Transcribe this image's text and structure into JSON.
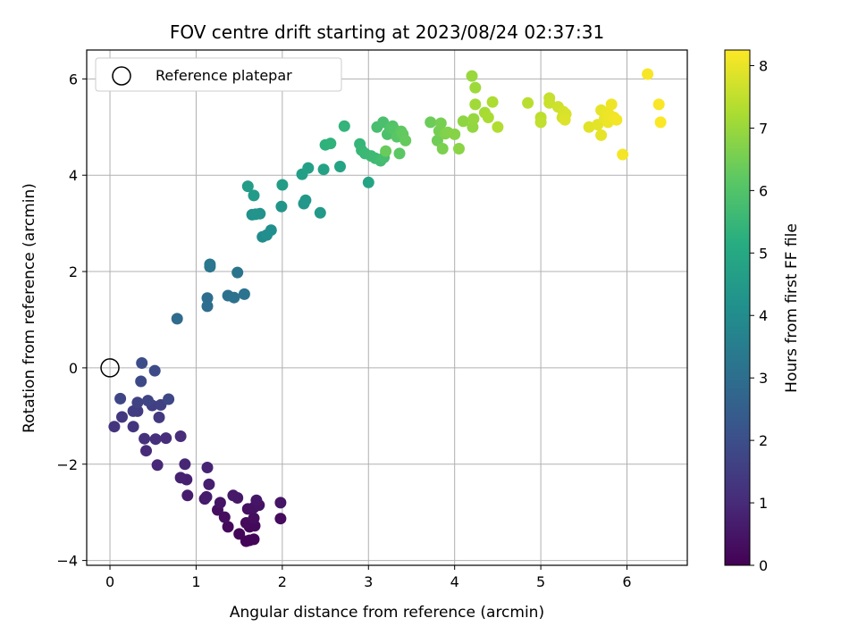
{
  "chart_data": {
    "type": "scatter",
    "title": "FOV centre drift starting at 2023/08/24 02:37:31",
    "xlabel": "Angular distance from reference (arcmin)",
    "ylabel": "Rotation from reference (arcmin)",
    "xlim": [
      -0.27,
      6.7
    ],
    "ylim": [
      -4.1,
      6.6
    ],
    "xticks": [
      0,
      1,
      2,
      3,
      4,
      5,
      6
    ],
    "yticks": [
      -4,
      -2,
      0,
      2,
      4,
      6
    ],
    "xtick_labels": [
      "0",
      "1",
      "2",
      "3",
      "4",
      "5",
      "6"
    ],
    "ytick_labels": [
      "−4",
      "−2",
      "0",
      "2",
      "4",
      "6"
    ],
    "grid": true,
    "legend": {
      "position": "top-left",
      "entries": [
        {
          "label": "Reference platepar",
          "marker": "open-circle"
        }
      ]
    },
    "reference_point": {
      "x": 0,
      "y": 0
    },
    "colorbar": {
      "label": "Hours from first FF file",
      "colormap": "viridis",
      "range": [
        0,
        8.25
      ],
      "ticks": [
        0,
        1,
        2,
        3,
        4,
        5,
        6,
        7,
        8
      ],
      "tick_labels": [
        "0",
        "1",
        "2",
        "3",
        "4",
        "5",
        "6",
        "7",
        "8"
      ]
    },
    "points": [
      [
        1.62,
        -3.58,
        0.05
      ],
      [
        1.58,
        -3.6,
        0.08
      ],
      [
        1.67,
        -3.56,
        0.1
      ],
      [
        1.5,
        -3.45,
        0.12
      ],
      [
        1.62,
        -3.3,
        0.15
      ],
      [
        1.37,
        -3.3,
        0.18
      ],
      [
        1.68,
        -3.28,
        0.2
      ],
      [
        1.58,
        -3.22,
        0.22
      ],
      [
        1.98,
        -3.13,
        0.25
      ],
      [
        1.67,
        -3.12,
        0.28
      ],
      [
        1.33,
        -3.1,
        0.3
      ],
      [
        1.25,
        -2.95,
        0.33
      ],
      [
        1.6,
        -2.93,
        0.36
      ],
      [
        1.67,
        -2.9,
        0.39
      ],
      [
        1.73,
        -2.85,
        0.42
      ],
      [
        1.28,
        -2.8,
        0.45
      ],
      [
        1.98,
        -2.8,
        0.48
      ],
      [
        1.7,
        -2.75,
        0.51
      ],
      [
        1.48,
        -2.7,
        0.54
      ],
      [
        1.43,
        -2.65,
        0.57
      ],
      [
        1.1,
        -2.72,
        0.6
      ],
      [
        1.12,
        -2.68,
        0.64
      ],
      [
        0.9,
        -2.65,
        0.68
      ],
      [
        1.15,
        -2.42,
        0.72
      ],
      [
        0.89,
        -2.32,
        0.76
      ],
      [
        0.82,
        -2.28,
        0.8
      ],
      [
        1.13,
        -2.07,
        0.85
      ],
      [
        0.87,
        -2.0,
        0.9
      ],
      [
        0.55,
        -2.02,
        0.95
      ],
      [
        0.42,
        -1.72,
        1.0
      ],
      [
        0.82,
        -1.42,
        1.05
      ],
      [
        0.65,
        -1.46,
        1.1
      ],
      [
        0.53,
        -1.48,
        1.15
      ],
      [
        0.4,
        -1.47,
        1.2
      ],
      [
        0.05,
        -1.22,
        1.25
      ],
      [
        0.27,
        -1.22,
        1.3
      ],
      [
        0.14,
        -1.02,
        1.35
      ],
      [
        0.57,
        -1.03,
        1.4
      ],
      [
        0.32,
        -0.9,
        1.45
      ],
      [
        0.27,
        -0.9,
        1.5
      ],
      [
        0.49,
        -0.78,
        1.55
      ],
      [
        0.59,
        -0.77,
        1.6
      ],
      [
        0.32,
        -0.72,
        1.65
      ],
      [
        0.44,
        -0.68,
        1.7
      ],
      [
        0.12,
        -0.64,
        1.75
      ],
      [
        0.68,
        -0.65,
        1.8
      ],
      [
        0.36,
        -0.28,
        1.85
      ],
      [
        0.52,
        -0.06,
        1.9
      ],
      [
        0.37,
        0.1,
        1.95
      ],
      [
        0.78,
        1.02,
        2.9
      ],
      [
        1.13,
        1.28,
        2.95
      ],
      [
        1.13,
        1.45,
        3.0
      ],
      [
        1.37,
        1.5,
        3.05
      ],
      [
        1.44,
        1.46,
        3.1
      ],
      [
        1.56,
        1.53,
        3.15
      ],
      [
        1.48,
        1.98,
        3.2
      ],
      [
        1.16,
        2.1,
        3.25
      ],
      [
        1.16,
        2.15,
        3.3
      ],
      [
        1.77,
        2.72,
        4.0
      ],
      [
        1.82,
        2.76,
        4.05
      ],
      [
        1.87,
        2.86,
        4.1
      ],
      [
        1.65,
        3.18,
        4.15
      ],
      [
        1.74,
        3.2,
        4.2
      ],
      [
        1.69,
        3.19,
        4.25
      ],
      [
        1.99,
        3.35,
        4.3
      ],
      [
        2.25,
        3.41,
        4.35
      ],
      [
        2.27,
        3.48,
        4.4
      ],
      [
        2.44,
        3.22,
        4.45
      ],
      [
        1.67,
        3.58,
        4.5
      ],
      [
        1.6,
        3.77,
        4.55
      ],
      [
        2.0,
        3.8,
        4.6
      ],
      [
        2.23,
        4.02,
        4.65
      ],
      [
        2.3,
        4.15,
        4.7
      ],
      [
        2.48,
        4.12,
        4.75
      ],
      [
        2.67,
        4.18,
        4.8
      ],
      [
        3.0,
        3.85,
        4.85
      ],
      [
        2.5,
        4.63,
        5.3
      ],
      [
        2.56,
        4.66,
        5.35
      ],
      [
        2.72,
        5.02,
        5.4
      ],
      [
        2.9,
        4.65,
        5.45
      ],
      [
        2.92,
        4.52,
        5.5
      ],
      [
        2.96,
        4.45,
        5.55
      ],
      [
        3.03,
        4.4,
        5.6
      ],
      [
        3.08,
        4.35,
        5.65
      ],
      [
        3.14,
        4.3,
        5.7
      ],
      [
        3.18,
        4.37,
        5.75
      ],
      [
        3.1,
        5.0,
        5.8
      ],
      [
        3.17,
        5.1,
        5.85
      ],
      [
        3.22,
        4.85,
        5.9
      ],
      [
        3.25,
        4.98,
        5.95
      ],
      [
        3.28,
        5.02,
        6.0
      ],
      [
        3.3,
        4.95,
        6.05
      ],
      [
        3.33,
        4.8,
        6.1
      ],
      [
        3.36,
        4.45,
        6.15
      ],
      [
        3.38,
        4.91,
        6.2
      ],
      [
        3.4,
        4.85,
        6.25
      ],
      [
        3.43,
        4.72,
        6.3
      ],
      [
        3.2,
        4.5,
        6.35
      ],
      [
        3.72,
        5.1,
        6.4
      ],
      [
        3.8,
        4.72,
        6.45
      ],
      [
        3.82,
        4.92,
        6.5
      ],
      [
        3.84,
        5.08,
        6.55
      ],
      [
        3.86,
        4.55,
        6.6
      ],
      [
        3.89,
        4.86,
        6.65
      ],
      [
        3.92,
        4.89,
        6.7
      ],
      [
        4.0,
        4.85,
        6.75
      ],
      [
        4.05,
        4.55,
        6.8
      ],
      [
        4.1,
        5.12,
        6.85
      ],
      [
        4.21,
        5.0,
        6.9
      ],
      [
        4.22,
        5.17,
        6.95
      ],
      [
        4.2,
        6.06,
        7.0
      ],
      [
        4.24,
        5.82,
        7.05
      ],
      [
        4.24,
        5.47,
        7.1
      ],
      [
        4.35,
        5.3,
        7.15
      ],
      [
        4.39,
        5.2,
        7.2
      ],
      [
        4.44,
        5.52,
        7.25
      ],
      [
        4.5,
        5.0,
        7.3
      ],
      [
        4.85,
        5.5,
        7.4
      ],
      [
        5.0,
        5.2,
        7.45
      ],
      [
        5.0,
        5.1,
        7.5
      ],
      [
        5.1,
        5.6,
        7.55
      ],
      [
        5.1,
        5.5,
        7.6
      ],
      [
        5.2,
        5.42,
        7.65
      ],
      [
        5.25,
        5.2,
        7.7
      ],
      [
        5.26,
        5.32,
        7.75
      ],
      [
        5.29,
        5.27,
        7.8
      ],
      [
        5.28,
        5.15,
        7.85
      ],
      [
        5.56,
        5.0,
        7.9
      ],
      [
        5.66,
        5.05,
        7.93
      ],
      [
        5.7,
        4.83,
        7.95
      ],
      [
        5.7,
        5.35,
        7.97
      ],
      [
        5.74,
        5.17,
        8.0
      ],
      [
        5.76,
        5.3,
        8.02
      ],
      [
        5.78,
        5.1,
        8.04
      ],
      [
        5.8,
        5.25,
        8.06
      ],
      [
        5.82,
        5.47,
        8.08
      ],
      [
        5.85,
        5.2,
        8.1
      ],
      [
        5.88,
        5.15,
        8.12
      ],
      [
        5.95,
        4.43,
        8.14
      ],
      [
        6.24,
        6.1,
        8.17
      ],
      [
        6.37,
        5.47,
        8.2
      ],
      [
        6.39,
        5.1,
        8.22
      ]
    ]
  }
}
